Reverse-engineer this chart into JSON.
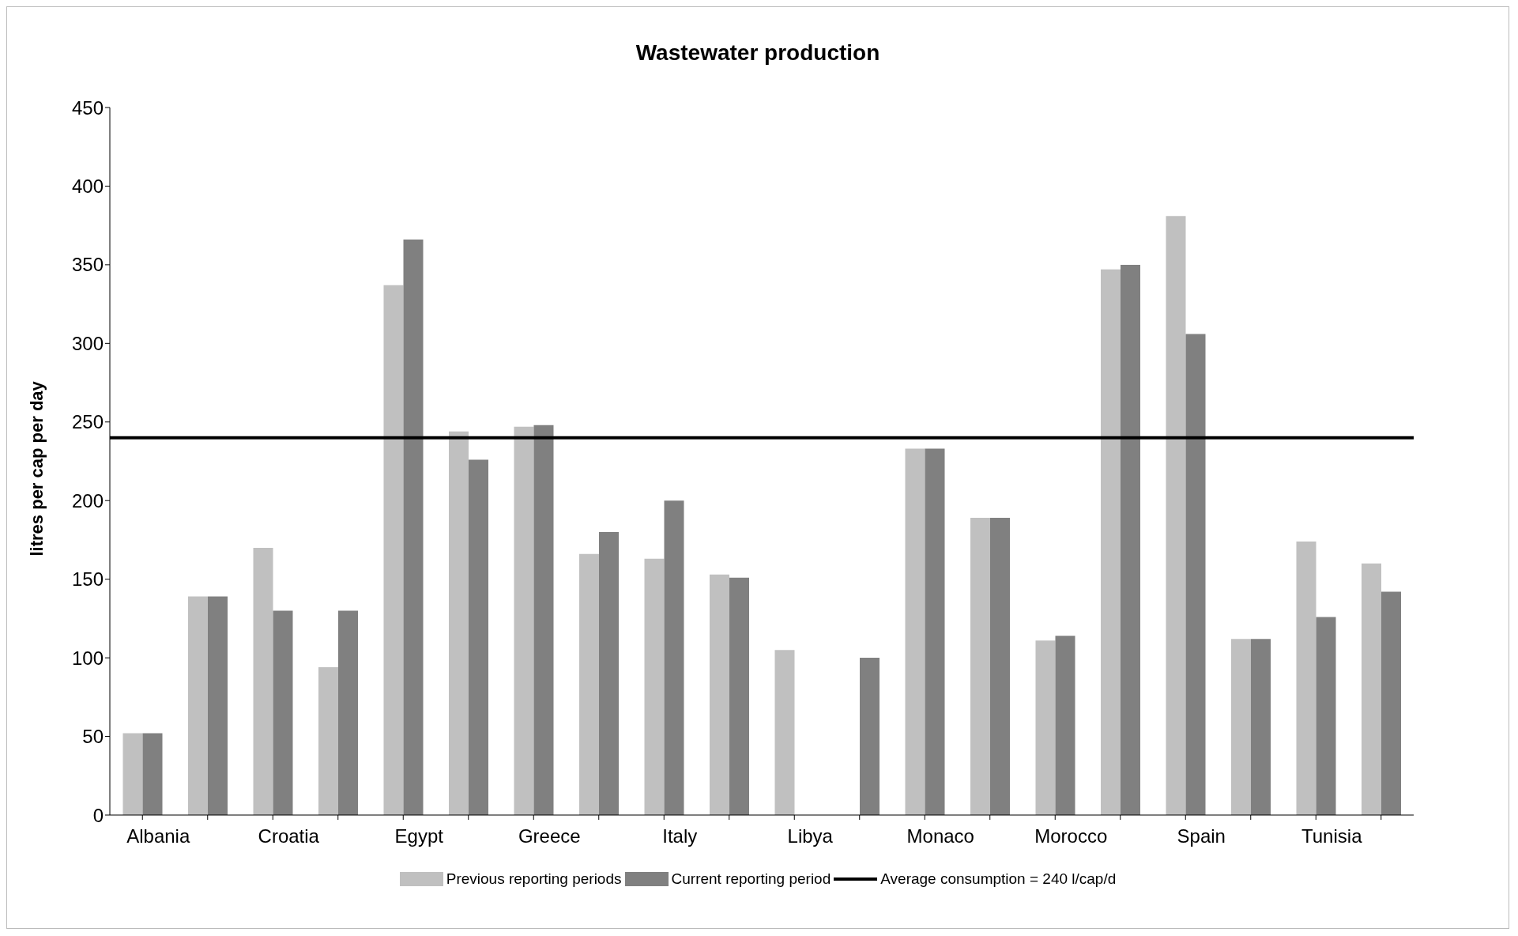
{
  "chart_data": {
    "type": "bar",
    "title": "Wastewater production",
    "ylabel": "litres per cap per day",
    "categories": [
      "Albania",
      null,
      "Croatia",
      null,
      "Egypt",
      null,
      "Greece",
      null,
      "Italy",
      null,
      "Libya",
      null,
      "Monaco",
      null,
      "Morocco",
      null,
      "Spain",
      null,
      "Tunisia",
      null
    ],
    "series": [
      {
        "name": "Previous reporting periods",
        "color": "#c0c0c0",
        "values": [
          52,
          139,
          170,
          94,
          337,
          244,
          247,
          166,
          163,
          153,
          105,
          null,
          233,
          189,
          111,
          347,
          381,
          112,
          174,
          160
        ]
      },
      {
        "name": "Current reporting period",
        "color": "#808080",
        "values": [
          52,
          139,
          130,
          130,
          366,
          226,
          248,
          180,
          200,
          151,
          null,
          100,
          233,
          189,
          114,
          350,
          306,
          112,
          126,
          142
        ]
      }
    ],
    "ylim": [
      0,
      450
    ],
    "yticks": [
      0,
      50,
      100,
      150,
      200,
      250,
      300,
      350,
      400,
      450
    ],
    "grid": false,
    "legend": "bottom",
    "ref_lines": [
      {
        "axis": "y",
        "value": 240,
        "label": "Average consumption = 240 l/cap/d",
        "color": "#000000"
      }
    ]
  }
}
